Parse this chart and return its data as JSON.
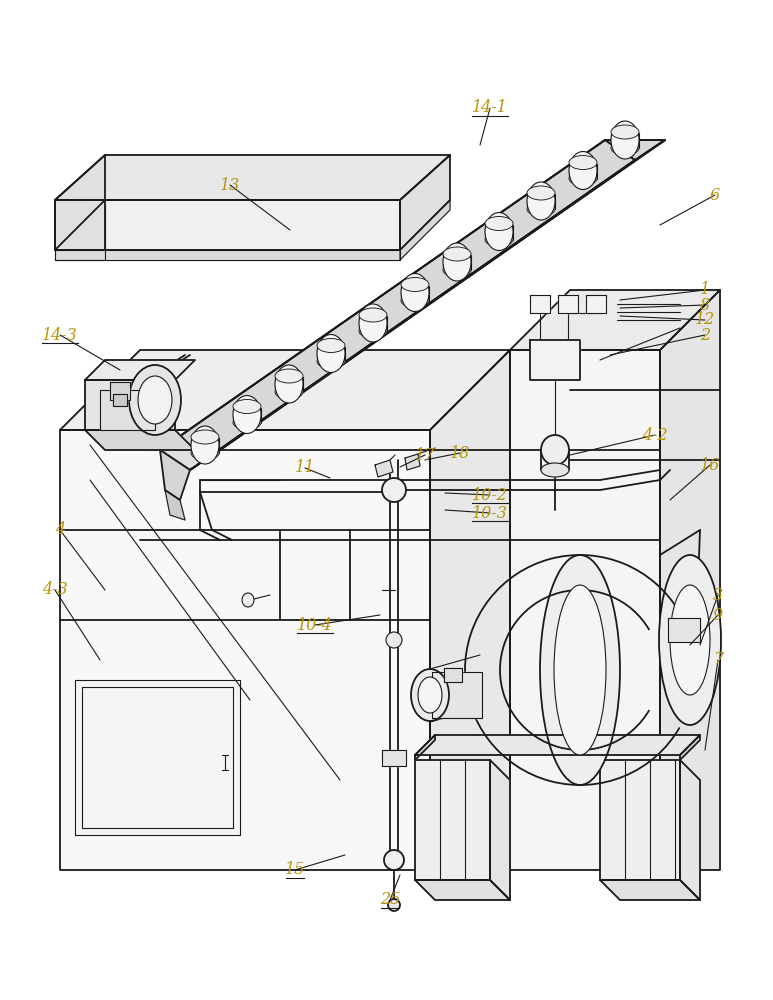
{
  "bg_color": "#ffffff",
  "line_color": "#1a1a1a",
  "label_color": "#b8960c",
  "lw": 1.3,
  "lw_thin": 0.8,
  "figsize": [
    7.73,
    10.0
  ],
  "dpi": 100
}
